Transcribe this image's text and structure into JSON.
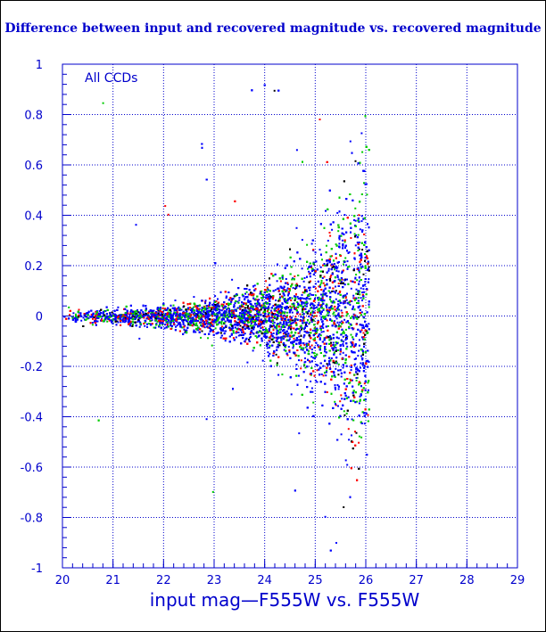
{
  "chart_data": {
    "type": "scatter",
    "title": "Difference between input and recovered magnitude vs. recovered magnitude",
    "xlabel": "input mag—F555W vs. F555W",
    "ylabel": "",
    "annotation": "All CCDs",
    "xlim": [
      20,
      29
    ],
    "ylim": [
      -1,
      1
    ],
    "x_ticks": [
      "20",
      "21",
      "22",
      "23",
      "24",
      "25",
      "26",
      "27",
      "28",
      "29"
    ],
    "y_ticks": [
      "1",
      "0.8",
      "0.6",
      "0.4",
      "0.2",
      "0",
      "-0.2",
      "-0.4",
      "-0.6",
      "-0.8",
      "-1"
    ],
    "grid": true,
    "colors": {
      "axis": "#0000cc",
      "grid": "#0000cc",
      "points": [
        "#0000ff",
        "#00cc00",
        "#ff0000",
        "#000000"
      ]
    },
    "series": [
      {
        "color": "#0000ff",
        "envelope": [
          {
            "x": 20.0,
            "spread": 0.03
          },
          {
            "x": 21.0,
            "spread": 0.035
          },
          {
            "x": 22.0,
            "spread": 0.05
          },
          {
            "x": 23.0,
            "spread": 0.08
          },
          {
            "x": 24.0,
            "spread": 0.14
          },
          {
            "x": 24.5,
            "spread": 0.2
          },
          {
            "x": 25.0,
            "spread": 0.3
          },
          {
            "x": 25.5,
            "spread": 0.45
          },
          {
            "x": 25.9,
            "spread": 0.6
          },
          {
            "x": 26.05,
            "spread": 0.7
          }
        ]
      },
      {
        "color": "#00cc00"
      },
      {
        "color": "#ff0000"
      },
      {
        "color": "#000000"
      }
    ]
  }
}
